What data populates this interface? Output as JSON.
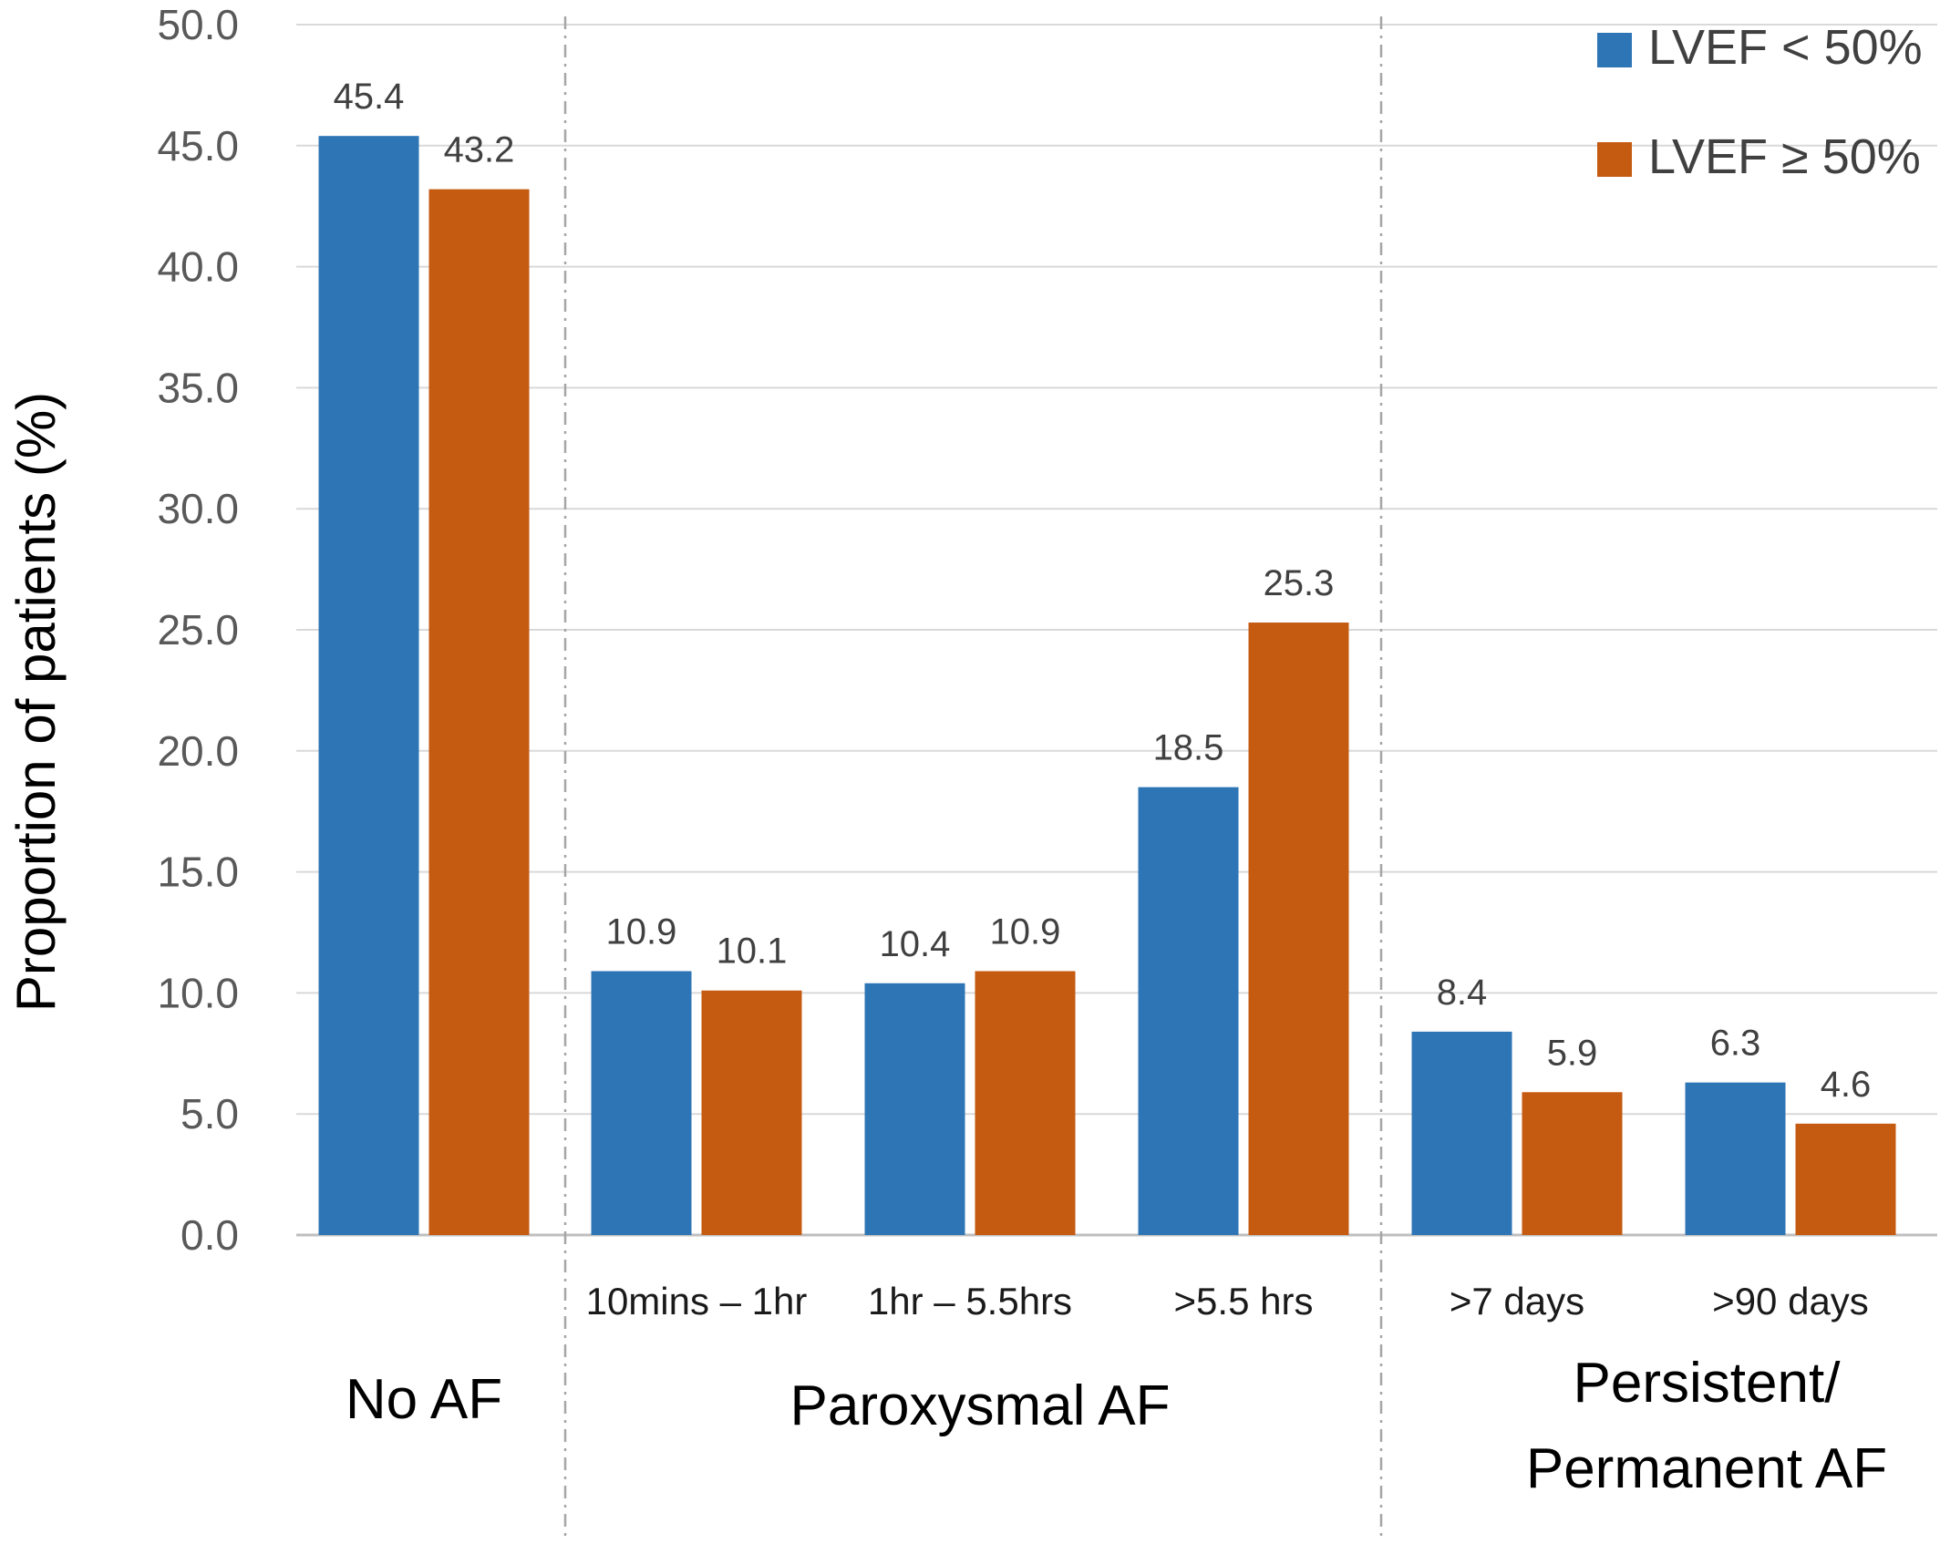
{
  "chart_data": {
    "type": "bar",
    "title": "",
    "xlabel": "",
    "ylabel": "Proportion of patients (%)",
    "ylim": [
      0,
      50
    ],
    "y_ticks": [
      "0.0",
      "5.0",
      "10.0",
      "15.0",
      "20.0",
      "25.0",
      "30.0",
      "35.0",
      "40.0",
      "45.0",
      "50.0"
    ],
    "grid": true,
    "legend_position": "top-right",
    "categories": [
      "",
      "10mins – 1hr",
      "1hr – 5.5hrs",
      ">5.5 hrs",
      ">7 days",
      ">90 days"
    ],
    "groups": [
      {
        "label": "No AF",
        "categories": [
          0
        ]
      },
      {
        "label": "Paroxysmal AF",
        "categories": [
          1,
          2,
          3
        ]
      },
      {
        "label": "Persistent/\nPermanent AF",
        "categories": [
          4,
          5
        ]
      }
    ],
    "series": [
      {
        "name": "LVEF < 50%",
        "color": "#2E75B6",
        "values": [
          45.4,
          10.9,
          10.4,
          18.5,
          8.4,
          6.3
        ]
      },
      {
        "name": "LVEF ≥ 50%",
        "color": "#C55A11",
        "values": [
          43.2,
          10.1,
          10.9,
          25.3,
          5.9,
          4.6
        ]
      }
    ]
  }
}
